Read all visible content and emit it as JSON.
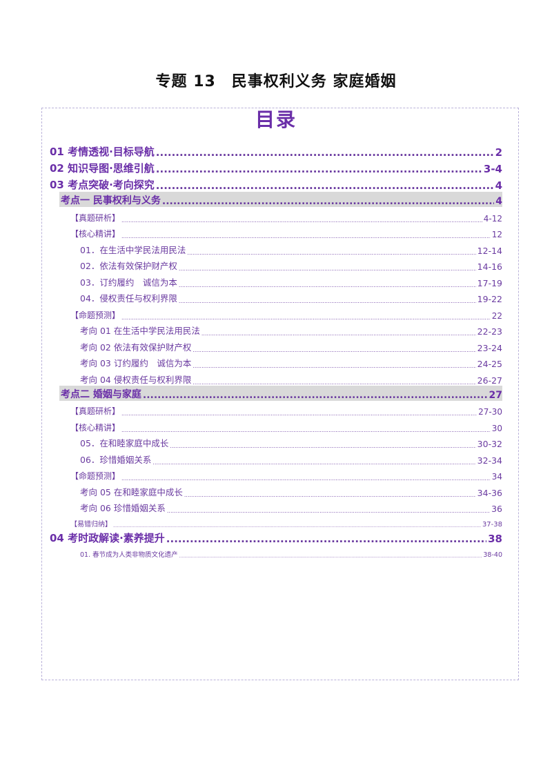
{
  "document": {
    "title": "专题 13　民事权利义务  家庭婚姻",
    "toc_heading": "目录"
  },
  "toc": [
    {
      "level": "lvl1",
      "label": "01 考情透视·目标导航",
      "page": "2"
    },
    {
      "level": "lvl1",
      "label": "02 知识导图·思维引航",
      "page": "3-4"
    },
    {
      "level": "lvl1",
      "label": "03 考点突破·考向探究",
      "page": "4"
    },
    {
      "level": "lvl2",
      "label": "考点一  民事权利与义务 ",
      "page": "4"
    },
    {
      "level": "lvl3",
      "label": "【真题研析】",
      "page": "4-12"
    },
    {
      "level": "lvl3",
      "label": "【核心精讲】",
      "page": "12"
    },
    {
      "level": "lvl4",
      "label": "01．在生活中学民法用民法 ",
      "page": "12-14"
    },
    {
      "level": "lvl4",
      "label": "02．依法有效保护财产权",
      "page": "14-16"
    },
    {
      "level": "lvl4",
      "label": "03．订约履约　诚信为本",
      "page": "17-19"
    },
    {
      "level": "lvl4",
      "label": "04．侵权责任与权利界限",
      "page": "19-22"
    },
    {
      "level": "lvl3",
      "label": "【命题预测】",
      "page": "22"
    },
    {
      "level": "lvl4",
      "label": "考向 01  在生活中学民法用民法 ",
      "page": "22-23"
    },
    {
      "level": "lvl4",
      "label": "考向 02  依法有效保护财产权",
      "page": "23-24"
    },
    {
      "level": "lvl4",
      "label": "考向 03  订约履约　诚信为本",
      "page": "24-25"
    },
    {
      "level": "lvl4",
      "label": "考向 04  侵权责任与权利界限",
      "page": "26-27"
    },
    {
      "level": "lvl2",
      "label": "考点二  婚姻与家庭",
      "page": "27"
    },
    {
      "level": "lvl3",
      "label": "【真题研析】",
      "page": "27-30"
    },
    {
      "level": "lvl3",
      "label": "【核心精讲】",
      "page": "30"
    },
    {
      "level": "lvl4",
      "label": "05．在和睦家庭中成长",
      "page": "30-32"
    },
    {
      "level": "lvl4",
      "label": "06．珍惜婚姻关系",
      "page": "32-34"
    },
    {
      "level": "lvl3",
      "label": "【命题预测】",
      "page": "34"
    },
    {
      "level": "lvl4",
      "label": "考向 05  在和睦家庭中成长",
      "page": "34-36"
    },
    {
      "level": "lvl4",
      "label": "考向 06  珍惜婚姻关系",
      "page": "36"
    },
    {
      "level": "lvl3s",
      "label": "【易错归纳】",
      "page": "37-38"
    },
    {
      "level": "lvl1",
      "label": "04 考时政解读·素养提升",
      "page": "38"
    },
    {
      "level": "lvl4s",
      "label": "01. 春节成为人类非物质文化遗产 ",
      "page": "38-40"
    }
  ]
}
